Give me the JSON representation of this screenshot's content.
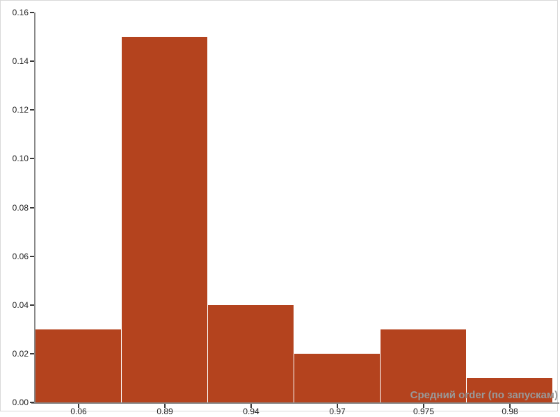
{
  "panel": {
    "background": "#ffffff",
    "border_color": "#d8d8d8"
  },
  "chart_data": {
    "type": "bar",
    "title": "",
    "xlabel": "Средний order (по запускам)",
    "ylabel": "",
    "categories": [
      "0.06",
      "0.89",
      "0.94",
      "0.97",
      "0.975",
      "0.98"
    ],
    "values": [
      0.03,
      0.15,
      0.04,
      0.02,
      0.03,
      0.01
    ],
    "ylim": [
      0,
      0.16
    ],
    "y_ticks": [
      "0.00",
      "0.02",
      "0.04",
      "0.06",
      "0.08",
      "0.10",
      "0.12",
      "0.14",
      "0.16"
    ],
    "grid": false,
    "legend": "none",
    "bar_color": "#b4431e",
    "axis_color": "#888888",
    "tick_color": "#3a3a3a",
    "label_color": "#1f1f1f",
    "xlabel_color": "#999999"
  }
}
